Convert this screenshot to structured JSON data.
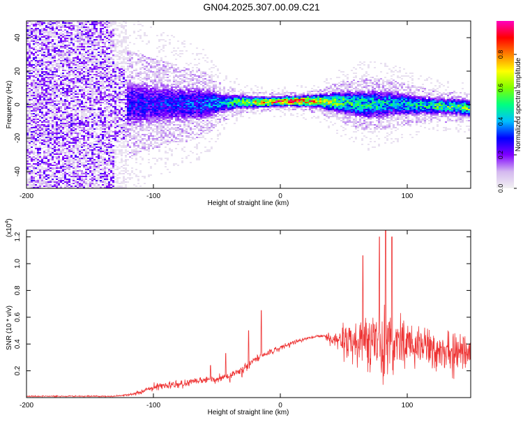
{
  "title": "GN04.2025.307.00.09.C21",
  "chart_data": [
    {
      "type": "heatmap",
      "xlabel": "Height of straight line (km)",
      "ylabel": "Frequency (Hz)",
      "xlim": [
        -200,
        150
      ],
      "ylim": [
        -50,
        50
      ],
      "xticks": [
        -200,
        -100,
        0,
        100
      ],
      "yticks": [
        -40,
        -20,
        0,
        20,
        40
      ],
      "colorbar": {
        "label": "Normalized spectral amplitude",
        "range": [
          0,
          1
        ],
        "ticks": [
          "0.0",
          "0.2",
          "0.4",
          "0.6",
          "0.8"
        ],
        "colormap": [
          "#f2f2f2",
          "#d4b8f0",
          "#7f00ff",
          "#0000ff",
          "#00bfff",
          "#00ff80",
          "#80ff00",
          "#ffff00",
          "#ff8000",
          "#ff0000",
          "#ff00bf"
        ]
      },
      "ridge": {
        "x": [
          -200,
          -120,
          -100,
          -80,
          -60,
          -45,
          -30,
          -10,
          10,
          30,
          50,
          70,
          90,
          110,
          130,
          150
        ],
        "freq_center": [
          0,
          0,
          0.5,
          0.5,
          0.5,
          1,
          1.5,
          1.5,
          2,
          2,
          1,
          0,
          0.5,
          -0.5,
          -1,
          -2
        ],
        "peak_amplitude": [
          0.15,
          0.3,
          0.3,
          0.33,
          0.36,
          0.45,
          0.6,
          0.85,
          0.92,
          0.75,
          0.55,
          0.5,
          0.45,
          0.5,
          0.55,
          0.6
        ],
        "spread_hz": [
          45,
          18,
          15,
          13,
          11,
          6,
          4,
          3,
          3,
          4,
          7,
          9,
          8,
          6,
          5,
          5
        ]
      }
    },
    {
      "type": "line",
      "xlabel": "Height of straight line (km)",
      "ylabel": "SNR (10 * v/v)",
      "y_multiplier": "(x10",
      "y_multiplier_exp": "4",
      "xlim": [
        -200,
        150
      ],
      "ylim": [
        0,
        1.25
      ],
      "xticks": [
        -200,
        -100,
        0,
        100
      ],
      "yticks": [
        0.2,
        0.4,
        0.6,
        0.8,
        1.0,
        1.2
      ],
      "series": [
        {
          "color": "#ee3333",
          "envelope_x": [
            -200,
            -130,
            -120,
            -110,
            -100,
            -80,
            -60,
            -40,
            -30,
            -25,
            -20,
            -10,
            0,
            10,
            20,
            30,
            35,
            40,
            50,
            60,
            70,
            80,
            90,
            100,
            110,
            120,
            130,
            150
          ],
          "envelope_mean": [
            0.01,
            0.01,
            0.02,
            0.04,
            0.08,
            0.1,
            0.13,
            0.16,
            0.2,
            0.24,
            0.28,
            0.33,
            0.37,
            0.41,
            0.44,
            0.46,
            0.46,
            0.44,
            0.42,
            0.4,
            0.4,
            0.4,
            0.4,
            0.38,
            0.37,
            0.36,
            0.35,
            0.35
          ],
          "envelope_noise": [
            0.008,
            0.008,
            0.015,
            0.025,
            0.04,
            0.05,
            0.05,
            0.06,
            0.06,
            0.06,
            0.05,
            0.04,
            0.04,
            0.03,
            0.02,
            0.015,
            0.02,
            0.08,
            0.2,
            0.3,
            0.35,
            0.4,
            0.35,
            0.3,
            0.28,
            0.26,
            0.26,
            0.25
          ],
          "spikes": [
            [
              -55,
              0.24
            ],
            [
              -43,
              0.33
            ],
            [
              -25,
              0.5
            ],
            [
              -15,
              0.65
            ],
            [
              65,
              1.06
            ],
            [
              78,
              1.2
            ],
            [
              83,
              1.25
            ],
            [
              88,
              1.2
            ]
          ]
        }
      ]
    }
  ]
}
